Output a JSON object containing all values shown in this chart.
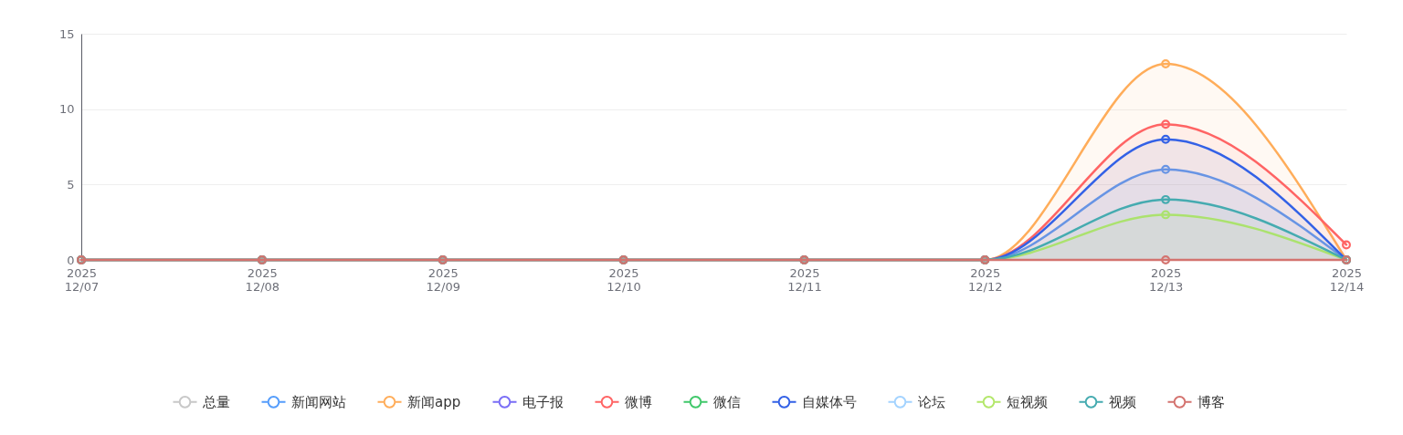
{
  "chart_data": {
    "type": "area",
    "x": [
      "2025-12-07",
      "2025-12-08",
      "2025-12-09",
      "2025-12-10",
      "2025-12-11",
      "2025-12-12",
      "2025-12-13",
      "2025-12-14"
    ],
    "xlim": [
      "2025-12-07",
      "2025-12-14"
    ],
    "xticks": [
      {
        "value": "2025-12-07",
        "label": "2025 12/07"
      },
      {
        "value": "2025-12-08",
        "label": "2025 12/08"
      },
      {
        "value": "2025-12-09",
        "label": "2025 12/09"
      },
      {
        "value": "2025-12-10",
        "label": "2025 12/10"
      },
      {
        "value": "2025-12-11",
        "label": "2025 12/11"
      },
      {
        "value": "2025-12-12",
        "label": "2025 12/12"
      },
      {
        "value": "2025-12-13",
        "label": "2025 12/13"
      },
      {
        "value": "2025-12-14",
        "label": "2025 12/14"
      }
    ],
    "ylim": [
      0,
      15
    ],
    "yticks": [
      0,
      5,
      10,
      15
    ],
    "grid": "y",
    "legend": "bottom",
    "marker": "circle",
    "series": [
      {
        "name": "总量",
        "color": "#c8c8c8",
        "values": [
          null,
          null,
          null,
          null,
          null,
          null,
          null,
          null
        ]
      },
      {
        "name": "新闻网站",
        "color": "#559dfb",
        "values": [
          0,
          0,
          0,
          0,
          0,
          0,
          6,
          0
        ]
      },
      {
        "name": "新闻app",
        "color": "#ffad5a",
        "values": [
          0,
          0,
          0,
          0,
          0,
          0,
          13,
          0
        ]
      },
      {
        "name": "电子报",
        "color": "#7a6ef6",
        "values": [
          null,
          null,
          null,
          null,
          null,
          null,
          null,
          null
        ]
      },
      {
        "name": "微博",
        "color": "#ff6464",
        "values": [
          0,
          0,
          0,
          0,
          0,
          0,
          9,
          1
        ]
      },
      {
        "name": "微信",
        "color": "#40c86a",
        "values": [
          null,
          null,
          null,
          null,
          null,
          null,
          null,
          null
        ]
      },
      {
        "name": "自媒体号",
        "color": "#3361e6",
        "values": [
          0,
          0,
          0,
          0,
          0,
          0,
          8,
          0
        ]
      },
      {
        "name": "论坛",
        "color": "#a3d3ff",
        "values": [
          null,
          null,
          null,
          null,
          null,
          null,
          null,
          null
        ]
      },
      {
        "name": "短视频",
        "color": "#b3e76a",
        "values": [
          0,
          0,
          0,
          0,
          0,
          0,
          3,
          0
        ]
      },
      {
        "name": "视频",
        "color": "#45abb0",
        "values": [
          0,
          0,
          0,
          0,
          0,
          0,
          4,
          0
        ]
      },
      {
        "name": "博客",
        "color": "#d4736f",
        "type": "line",
        "values": [
          0,
          0,
          0,
          0,
          0,
          0,
          0,
          0
        ]
      }
    ]
  }
}
